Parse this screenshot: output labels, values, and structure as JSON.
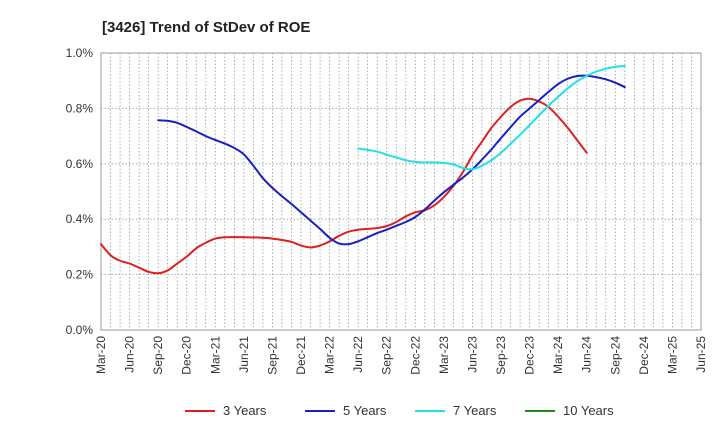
{
  "chart_data": {
    "type": "line",
    "title": "[3426]  Trend of StDev of ROE",
    "xlabel": "",
    "ylabel": "",
    "ylim": [
      0,
      1.0
    ],
    "grid": true,
    "legend_position": "bottom",
    "y_ticks": [
      0,
      0.2,
      0.4,
      0.6,
      0.8,
      1.0
    ],
    "y_tick_labels": [
      "0.0%",
      "0.2%",
      "0.4%",
      "0.6%",
      "0.8%",
      "1.0%"
    ],
    "x_tick_labels": [
      "Mar-20",
      "Jun-20",
      "Sep-20",
      "Dec-20",
      "Mar-21",
      "Jun-21",
      "Sep-21",
      "Dec-21",
      "Mar-22",
      "Jun-22",
      "Sep-22",
      "Dec-22",
      "Mar-23",
      "Jun-23",
      "Sep-23",
      "Dec-23",
      "Mar-24",
      "Jun-24",
      "Sep-24",
      "Dec-24",
      "Mar-25",
      "Jun-25"
    ],
    "x_unit": "month",
    "series": [
      {
        "name": "3 Years",
        "color": "#dd1f1f",
        "points": [
          [
            0,
            0.31
          ],
          [
            1,
            0.27
          ],
          [
            2,
            0.25
          ],
          [
            3,
            0.24
          ],
          [
            4,
            0.225
          ],
          [
            5,
            0.21
          ],
          [
            6,
            0.205
          ],
          [
            7,
            0.215
          ],
          [
            8,
            0.24
          ],
          [
            9,
            0.265
          ],
          [
            10,
            0.295
          ],
          [
            11,
            0.315
          ],
          [
            12,
            0.33
          ],
          [
            13,
            0.335
          ],
          [
            15,
            0.335
          ],
          [
            17,
            0.333
          ],
          [
            18,
            0.33
          ],
          [
            19,
            0.325
          ],
          [
            20,
            0.318
          ],
          [
            21,
            0.305
          ],
          [
            22,
            0.298
          ],
          [
            23,
            0.305
          ],
          [
            24,
            0.32
          ],
          [
            25,
            0.34
          ],
          [
            26,
            0.355
          ],
          [
            27,
            0.362
          ],
          [
            28,
            0.365
          ],
          [
            29,
            0.368
          ],
          [
            30,
            0.375
          ],
          [
            31,
            0.39
          ],
          [
            32,
            0.41
          ],
          [
            33,
            0.425
          ],
          [
            34,
            0.432
          ],
          [
            35,
            0.45
          ],
          [
            36,
            0.48
          ],
          [
            37,
            0.52
          ],
          [
            38,
            0.57
          ],
          [
            39,
            0.63
          ],
          [
            40,
            0.68
          ],
          [
            41,
            0.73
          ],
          [
            42,
            0.77
          ],
          [
            43,
            0.805
          ],
          [
            44,
            0.828
          ],
          [
            45,
            0.835
          ],
          [
            46,
            0.825
          ],
          [
            47,
            0.805
          ],
          [
            48,
            0.77
          ],
          [
            49,
            0.73
          ],
          [
            50,
            0.685
          ],
          [
            51,
            0.64
          ]
        ]
      },
      {
        "name": "5 Years",
        "color": "#1a1fc0",
        "points": [
          [
            6,
            0.757
          ],
          [
            7,
            0.755
          ],
          [
            8,
            0.748
          ],
          [
            9,
            0.733
          ],
          [
            10,
            0.717
          ],
          [
            11,
            0.7
          ],
          [
            12,
            0.686
          ],
          [
            13,
            0.673
          ],
          [
            14,
            0.657
          ],
          [
            15,
            0.634
          ],
          [
            16,
            0.593
          ],
          [
            17,
            0.548
          ],
          [
            18,
            0.513
          ],
          [
            19,
            0.483
          ],
          [
            20,
            0.455
          ],
          [
            21,
            0.425
          ],
          [
            22,
            0.395
          ],
          [
            23,
            0.365
          ],
          [
            24,
            0.333
          ],
          [
            25,
            0.312
          ],
          [
            26,
            0.31
          ],
          [
            27,
            0.32
          ],
          [
            28,
            0.335
          ],
          [
            29,
            0.35
          ],
          [
            30,
            0.362
          ],
          [
            31,
            0.376
          ],
          [
            32,
            0.39
          ],
          [
            33,
            0.408
          ],
          [
            34,
            0.435
          ],
          [
            35,
            0.467
          ],
          [
            36,
            0.497
          ],
          [
            37,
            0.524
          ],
          [
            38,
            0.55
          ],
          [
            39,
            0.58
          ],
          [
            40,
            0.615
          ],
          [
            41,
            0.652
          ],
          [
            42,
            0.693
          ],
          [
            43,
            0.732
          ],
          [
            44,
            0.77
          ],
          [
            45,
            0.8
          ],
          [
            46,
            0.83
          ],
          [
            47,
            0.86
          ],
          [
            48,
            0.888
          ],
          [
            49,
            0.907
          ],
          [
            50,
            0.917
          ],
          [
            51,
            0.918
          ],
          [
            52,
            0.913
          ],
          [
            53,
            0.905
          ],
          [
            54,
            0.893
          ],
          [
            55,
            0.877
          ]
        ]
      },
      {
        "name": "7 Years",
        "color": "#22e0e6",
        "points": [
          [
            27,
            0.655
          ],
          [
            28,
            0.65
          ],
          [
            29,
            0.644
          ],
          [
            30,
            0.633
          ],
          [
            31,
            0.623
          ],
          [
            32,
            0.613
          ],
          [
            33,
            0.607
          ],
          [
            34,
            0.605
          ],
          [
            35,
            0.605
          ],
          [
            36,
            0.603
          ],
          [
            37,
            0.598
          ],
          [
            38,
            0.585
          ],
          [
            39,
            0.58
          ],
          [
            40,
            0.593
          ],
          [
            41,
            0.613
          ],
          [
            42,
            0.64
          ],
          [
            43,
            0.672
          ],
          [
            44,
            0.705
          ],
          [
            45,
            0.74
          ],
          [
            46,
            0.775
          ],
          [
            47,
            0.81
          ],
          [
            48,
            0.842
          ],
          [
            49,
            0.872
          ],
          [
            50,
            0.898
          ],
          [
            51,
            0.918
          ],
          [
            52,
            0.933
          ],
          [
            53,
            0.943
          ],
          [
            54,
            0.95
          ],
          [
            55,
            0.953
          ]
        ]
      },
      {
        "name": "10 Years",
        "color": "#1e8a1e",
        "points": []
      }
    ]
  }
}
